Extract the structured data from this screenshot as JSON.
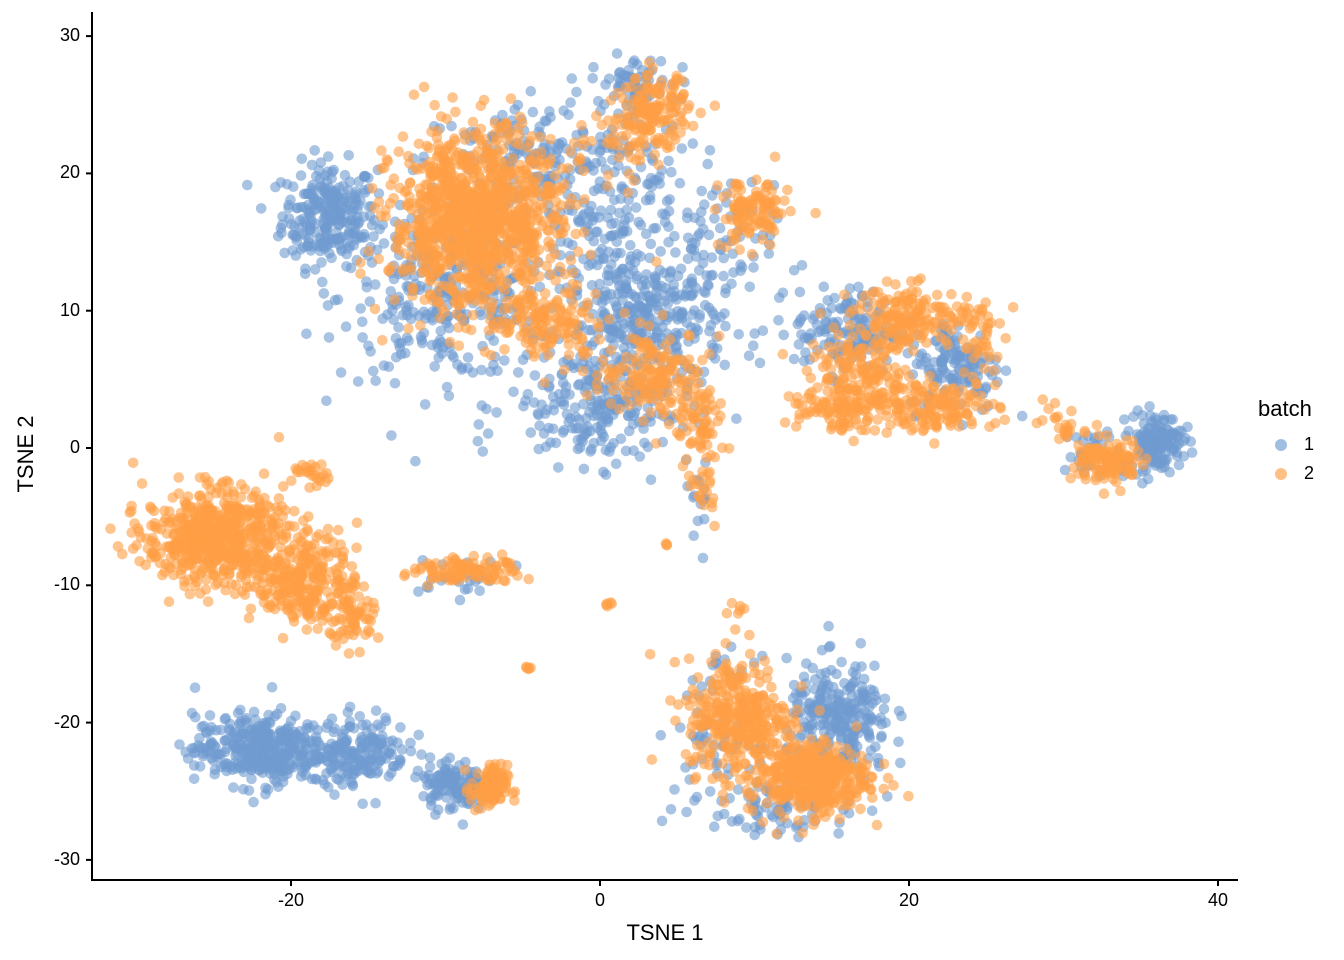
{
  "chart_data": {
    "type": "scatter",
    "title": "",
    "xlabel": "TSNE 1",
    "ylabel": "TSNE 2",
    "xlim": [
      -33,
      41
    ],
    "ylim": [
      -31.5,
      32.5
    ],
    "x_ticks": [
      -20,
      0,
      20,
      40
    ],
    "y_ticks": [
      30,
      20,
      10,
      0,
      -10,
      -20,
      -30
    ],
    "x_tick_labels": [
      "-20",
      "0",
      "20",
      "40"
    ],
    "y_tick_labels": [
      "30",
      "20",
      "10",
      "0",
      "-10",
      "-20",
      "-30"
    ],
    "grid": false,
    "point_alpha": 0.6,
    "legend": {
      "title": "batch",
      "position": "right",
      "entries": [
        {
          "label": "1",
          "color": "#6f9bd1"
        },
        {
          "label": "2",
          "color": "#ff9e45"
        }
      ]
    },
    "series": [
      {
        "name": "1",
        "color": "#6f9bd1",
        "clusters": [
          {
            "cx": -17.5,
            "cy": 17.0,
            "sx": 1.8,
            "sy": 2.2,
            "n": 260
          },
          {
            "cx": -10.0,
            "cy": 11.0,
            "sx": 4.0,
            "sy": 3.5,
            "n": 300
          },
          {
            "cx": -5.0,
            "cy": 21.0,
            "sx": 4.0,
            "sy": 2.5,
            "n": 120
          },
          {
            "cx": 0.5,
            "cy": 17.0,
            "sx": 3.5,
            "sy": 5.5,
            "n": 260
          },
          {
            "cx": 2.0,
            "cy": 26.5,
            "sx": 1.5,
            "sy": 1.2,
            "n": 60
          },
          {
            "cx": 3.0,
            "cy": 9.0,
            "sx": 3.0,
            "sy": 2.5,
            "n": 260
          },
          {
            "cx": 0.0,
            "cy": 3.0,
            "sx": 3.5,
            "sy": 2.5,
            "n": 220
          },
          {
            "cx": 7.0,
            "cy": 14.0,
            "sx": 2.5,
            "sy": 3.0,
            "n": 80
          },
          {
            "cx": 16.0,
            "cy": 8.5,
            "sx": 2.0,
            "sy": 1.8,
            "n": 140
          },
          {
            "cx": 23.0,
            "cy": 6.0,
            "sx": 1.8,
            "sy": 2.0,
            "n": 140
          },
          {
            "cx": 36.0,
            "cy": 0.5,
            "sx": 1.0,
            "sy": 1.2,
            "n": 150
          },
          {
            "cx": 32.5,
            "cy": -0.5,
            "sx": 1.5,
            "sy": 1.2,
            "n": 40
          },
          {
            "cx": -22.0,
            "cy": -22.0,
            "sx": 2.5,
            "sy": 1.5,
            "n": 380
          },
          {
            "cx": -15.5,
            "cy": -22.0,
            "sx": 1.8,
            "sy": 1.5,
            "n": 170
          },
          {
            "cx": -9.5,
            "cy": -24.5,
            "sx": 1.2,
            "sy": 1.1,
            "n": 120
          },
          {
            "cx": 15.5,
            "cy": -20.0,
            "sx": 2.0,
            "sy": 2.5,
            "n": 260
          },
          {
            "cx": 11.0,
            "cy": -26.0,
            "sx": 3.0,
            "sy": 1.2,
            "n": 80
          },
          {
            "cx": 7.5,
            "cy": -20.5,
            "sx": 1.5,
            "sy": 3.0,
            "n": 60
          },
          {
            "cx": -9.0,
            "cy": -9.5,
            "sx": 1.8,
            "sy": 0.8,
            "n": 30
          },
          {
            "cx": 6.5,
            "cy": -4.0,
            "sx": 0.4,
            "sy": 2.0,
            "n": 15
          }
        ]
      },
      {
        "name": "2",
        "color": "#ff9e45",
        "clusters": [
          {
            "cx": -8.0,
            "cy": 16.5,
            "sx": 3.2,
            "sy": 3.8,
            "n": 1100
          },
          {
            "cx": -3.0,
            "cy": 9.0,
            "sx": 2.0,
            "sy": 1.5,
            "n": 120
          },
          {
            "cx": 3.5,
            "cy": 5.5,
            "sx": 2.0,
            "sy": 1.8,
            "n": 160
          },
          {
            "cx": 6.5,
            "cy": 1.5,
            "sx": 1.0,
            "sy": 1.8,
            "n": 70
          },
          {
            "cx": 6.8,
            "cy": -3.0,
            "sx": 0.4,
            "sy": 1.3,
            "n": 20
          },
          {
            "cx": 3.5,
            "cy": 24.5,
            "sx": 1.3,
            "sy": 1.5,
            "n": 150
          },
          {
            "cx": 1.0,
            "cy": 22.0,
            "sx": 2.5,
            "sy": 2.0,
            "n": 45
          },
          {
            "cx": 10.0,
            "cy": 17.0,
            "sx": 1.3,
            "sy": 1.5,
            "n": 110
          },
          {
            "cx": 20.0,
            "cy": 9.5,
            "sx": 2.2,
            "sy": 1.3,
            "n": 170
          },
          {
            "cx": 17.0,
            "cy": 5.0,
            "sx": 2.0,
            "sy": 1.8,
            "n": 170
          },
          {
            "cx": 21.5,
            "cy": 3.0,
            "sx": 2.5,
            "sy": 1.1,
            "n": 150
          },
          {
            "cx": 15.0,
            "cy": 3.0,
            "sx": 2.0,
            "sy": 1.0,
            "n": 70
          },
          {
            "cx": 24.5,
            "cy": 8.0,
            "sx": 0.8,
            "sy": 2.2,
            "n": 40
          },
          {
            "cx": 33.0,
            "cy": -1.0,
            "sx": 1.3,
            "sy": 1.0,
            "n": 110
          },
          {
            "cx": 30.0,
            "cy": 1.5,
            "sx": 1.0,
            "sy": 0.8,
            "n": 25
          },
          {
            "cx": -25.0,
            "cy": -6.5,
            "sx": 2.6,
            "sy": 2.0,
            "n": 600
          },
          {
            "cx": -19.0,
            "cy": -9.5,
            "sx": 2.0,
            "sy": 2.0,
            "n": 280
          },
          {
            "cx": -16.0,
            "cy": -12.5,
            "sx": 1.0,
            "sy": 1.2,
            "n": 60
          },
          {
            "cx": -18.5,
            "cy": -2.0,
            "sx": 0.8,
            "sy": 0.5,
            "n": 25
          },
          {
            "cx": -10.0,
            "cy": -9.0,
            "sx": 1.5,
            "sy": 0.6,
            "n": 55
          },
          {
            "cx": -7.0,
            "cy": -9.0,
            "sx": 1.3,
            "sy": 0.6,
            "n": 45
          },
          {
            "cx": -7.2,
            "cy": -24.8,
            "sx": 0.7,
            "sy": 1.0,
            "n": 90
          },
          {
            "cx": 9.0,
            "cy": -19.5,
            "sx": 2.0,
            "sy": 2.5,
            "n": 320
          },
          {
            "cx": 13.5,
            "cy": -24.0,
            "sx": 2.3,
            "sy": 1.6,
            "n": 400
          },
          {
            "cx": 9.0,
            "cy": -12.5,
            "sx": 0.5,
            "sy": 0.8,
            "n": 8
          },
          {
            "cx": 0.5,
            "cy": -11.5,
            "sx": 0.2,
            "sy": 0.15,
            "n": 5
          },
          {
            "cx": -4.7,
            "cy": -16.1,
            "sx": 0.2,
            "sy": 0.1,
            "n": 5
          },
          {
            "cx": 4.3,
            "cy": -7.0,
            "sx": 0.2,
            "sy": 0.1,
            "n": 3
          }
        ]
      }
    ]
  }
}
